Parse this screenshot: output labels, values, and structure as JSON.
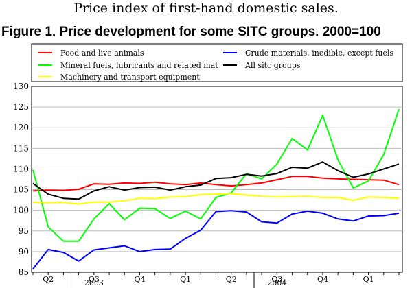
{
  "header": {
    "subtitle": "Price index of first-hand domestic sales.",
    "title": "Figure 1. Price development for some SITC groups. 2000=100"
  },
  "chart_data": {
    "type": "line",
    "title": "Figure 1. Price development for some SITC groups. 2000=100",
    "xlabel": "",
    "ylabel": "",
    "ylim": [
      85,
      130
    ],
    "yticks": [
      85,
      90,
      95,
      100,
      105,
      110,
      115,
      120,
      125,
      130
    ],
    "grid": true,
    "legend_position": "top",
    "quarter_labels": [
      {
        "label": "Q2",
        "month_index": 1
      },
      {
        "label": "Q3",
        "month_index": 4
      },
      {
        "label": "Q4",
        "month_index": 7
      },
      {
        "label": "Q1",
        "month_index": 10
      },
      {
        "label": "Q2",
        "month_index": 13
      },
      {
        "label": "Q3",
        "month_index": 16
      },
      {
        "label": "Q4",
        "month_index": 19
      },
      {
        "label": "Q1",
        "month_index": 22
      }
    ],
    "year_labels": [
      {
        "label": "2003",
        "month_index": 4
      },
      {
        "label": "2004",
        "month_index": 16
      }
    ],
    "year_separators": [
      3,
      15
    ],
    "month_count": 25,
    "series": [
      {
        "name": "Food and live animals",
        "color": "#ff0000",
        "values": [
          104.7,
          104.9,
          104.8,
          105.1,
          106.4,
          106.3,
          106.6,
          106.5,
          106.8,
          106.4,
          106.2,
          106.6,
          106.2,
          105.9,
          106.2,
          106.6,
          107.4,
          108.2,
          108.2,
          107.8,
          107.6,
          107.5,
          107.4,
          107.3,
          106.2
        ]
      },
      {
        "name": "Mineral fuels, lubricants and related mat",
        "color": "#00ff00",
        "values": [
          109.8,
          96.0,
          92.5,
          92.5,
          97.9,
          101.6,
          97.7,
          100.5,
          100.4,
          98.0,
          99.8,
          97.9,
          103.1,
          104.2,
          108.9,
          107.6,
          111.2,
          117.4,
          114.6,
          123.0,
          112.2,
          105.4,
          107.1,
          113.5,
          124.5
        ]
      },
      {
        "name": "Machinery and transport equipment",
        "color": "#ffff00",
        "values": [
          101.9,
          101.8,
          101.9,
          101.5,
          102.0,
          102.0,
          102.3,
          102.9,
          102.8,
          103.2,
          103.3,
          103.8,
          103.9,
          104.0,
          103.7,
          103.4,
          103.2,
          103.3,
          103.4,
          103.1,
          103.1,
          102.4,
          103.2,
          103.1,
          102.9
        ]
      },
      {
        "name": "Crude materials, inedible, except fuels",
        "color": "#0000ff",
        "values": [
          85.8,
          90.5,
          89.8,
          87.7,
          90.4,
          90.9,
          91.4,
          90.0,
          90.5,
          90.6,
          93.2,
          95.2,
          99.7,
          99.9,
          99.6,
          97.2,
          96.9,
          99.1,
          99.8,
          99.3,
          97.9,
          97.4,
          98.6,
          98.7,
          99.3
        ]
      },
      {
        "name": "All sitc groups",
        "color": "#000000",
        "values": [
          106.5,
          103.9,
          102.9,
          102.7,
          104.7,
          105.7,
          104.9,
          105.5,
          105.6,
          104.9,
          105.7,
          106.1,
          107.7,
          107.9,
          108.7,
          108.3,
          108.9,
          110.4,
          110.2,
          111.7,
          109.6,
          108.0,
          108.8,
          110.0,
          111.2
        ]
      }
    ]
  }
}
